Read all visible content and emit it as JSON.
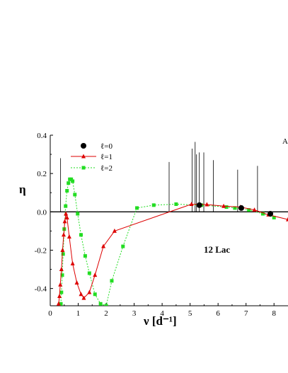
{
  "chart_data": {
    "type": "line",
    "xlabel": "ν [d⁻¹]",
    "ylabel": "η",
    "xlim": [
      0,
      8.5
    ],
    "ylim": [
      -0.49,
      0.4
    ],
    "x_ticks": [
      0,
      1,
      2,
      3,
      4,
      5,
      6,
      7,
      8
    ],
    "y_ticks": [
      -0.4,
      -0.2,
      0.0,
      0.2,
      0.4
    ],
    "y_tick_labels": [
      "-0.4",
      "-0.2",
      "0.0",
      "0.2",
      "0.4"
    ],
    "grid": false,
    "legend_position": "top-left",
    "annotation": "12 Lac",
    "corner_label": "A",
    "zero_line": true,
    "spectral_lines": [
      {
        "x": 0.37,
        "height": 0.28
      },
      {
        "x": 4.25,
        "height": 0.26
      },
      {
        "x": 5.07,
        "height": 0.33
      },
      {
        "x": 5.18,
        "height": 0.365
      },
      {
        "x": 5.23,
        "height": 0.3
      },
      {
        "x": 5.33,
        "height": 0.31
      },
      {
        "x": 5.49,
        "height": 0.31
      },
      {
        "x": 5.83,
        "height": 0.27
      },
      {
        "x": 6.7,
        "height": 0.22
      },
      {
        "x": 7.41,
        "height": 0.24
      }
    ],
    "series": [
      {
        "name": "ℓ=0",
        "color": "#000000",
        "marker": "circle",
        "line": "none",
        "x": [
          5.33,
          6.83,
          7.87
        ],
        "y": [
          0.035,
          0.02,
          -0.01
        ]
      },
      {
        "name": "ℓ=1",
        "color": "#dd0000",
        "marker": "triangle",
        "line": "solid",
        "x": [
          0.3,
          0.33,
          0.36,
          0.4,
          0.44,
          0.48,
          0.52,
          0.56,
          0.6,
          0.68,
          0.8,
          0.95,
          1.1,
          1.2,
          1.4,
          1.6,
          1.9,
          2.3,
          5.05,
          5.6,
          6.2,
          6.8,
          7.3,
          7.8,
          8.5
        ],
        "y": [
          -0.48,
          -0.44,
          -0.38,
          -0.3,
          -0.2,
          -0.12,
          -0.05,
          -0.01,
          -0.03,
          -0.13,
          -0.27,
          -0.37,
          -0.43,
          -0.45,
          -0.42,
          -0.33,
          -0.18,
          -0.1,
          0.04,
          0.038,
          0.03,
          0.025,
          0.01,
          -0.015,
          -0.04
        ]
      },
      {
        "name": "ℓ=2",
        "color": "#22dd22",
        "marker": "square",
        "line": "dotted",
        "x": [
          0.38,
          0.4,
          0.43,
          0.46,
          0.5,
          0.55,
          0.6,
          0.65,
          0.7,
          0.75,
          0.8,
          0.88,
          0.98,
          1.1,
          1.25,
          1.4,
          1.6,
          1.8,
          2.0,
          2.2,
          2.6,
          3.1,
          3.7,
          4.5,
          5.4,
          6.3,
          6.6,
          7.1,
          7.6,
          8.0
        ],
        "y": [
          -0.48,
          -0.42,
          -0.33,
          -0.22,
          -0.09,
          0.03,
          0.11,
          0.15,
          0.17,
          0.17,
          0.16,
          0.09,
          -0.01,
          -0.12,
          -0.23,
          -0.32,
          -0.43,
          -0.48,
          -0.49,
          -0.36,
          -0.18,
          0.02,
          0.035,
          0.04,
          0.035,
          0.025,
          0.02,
          0.01,
          -0.01,
          -0.03
        ]
      }
    ]
  }
}
